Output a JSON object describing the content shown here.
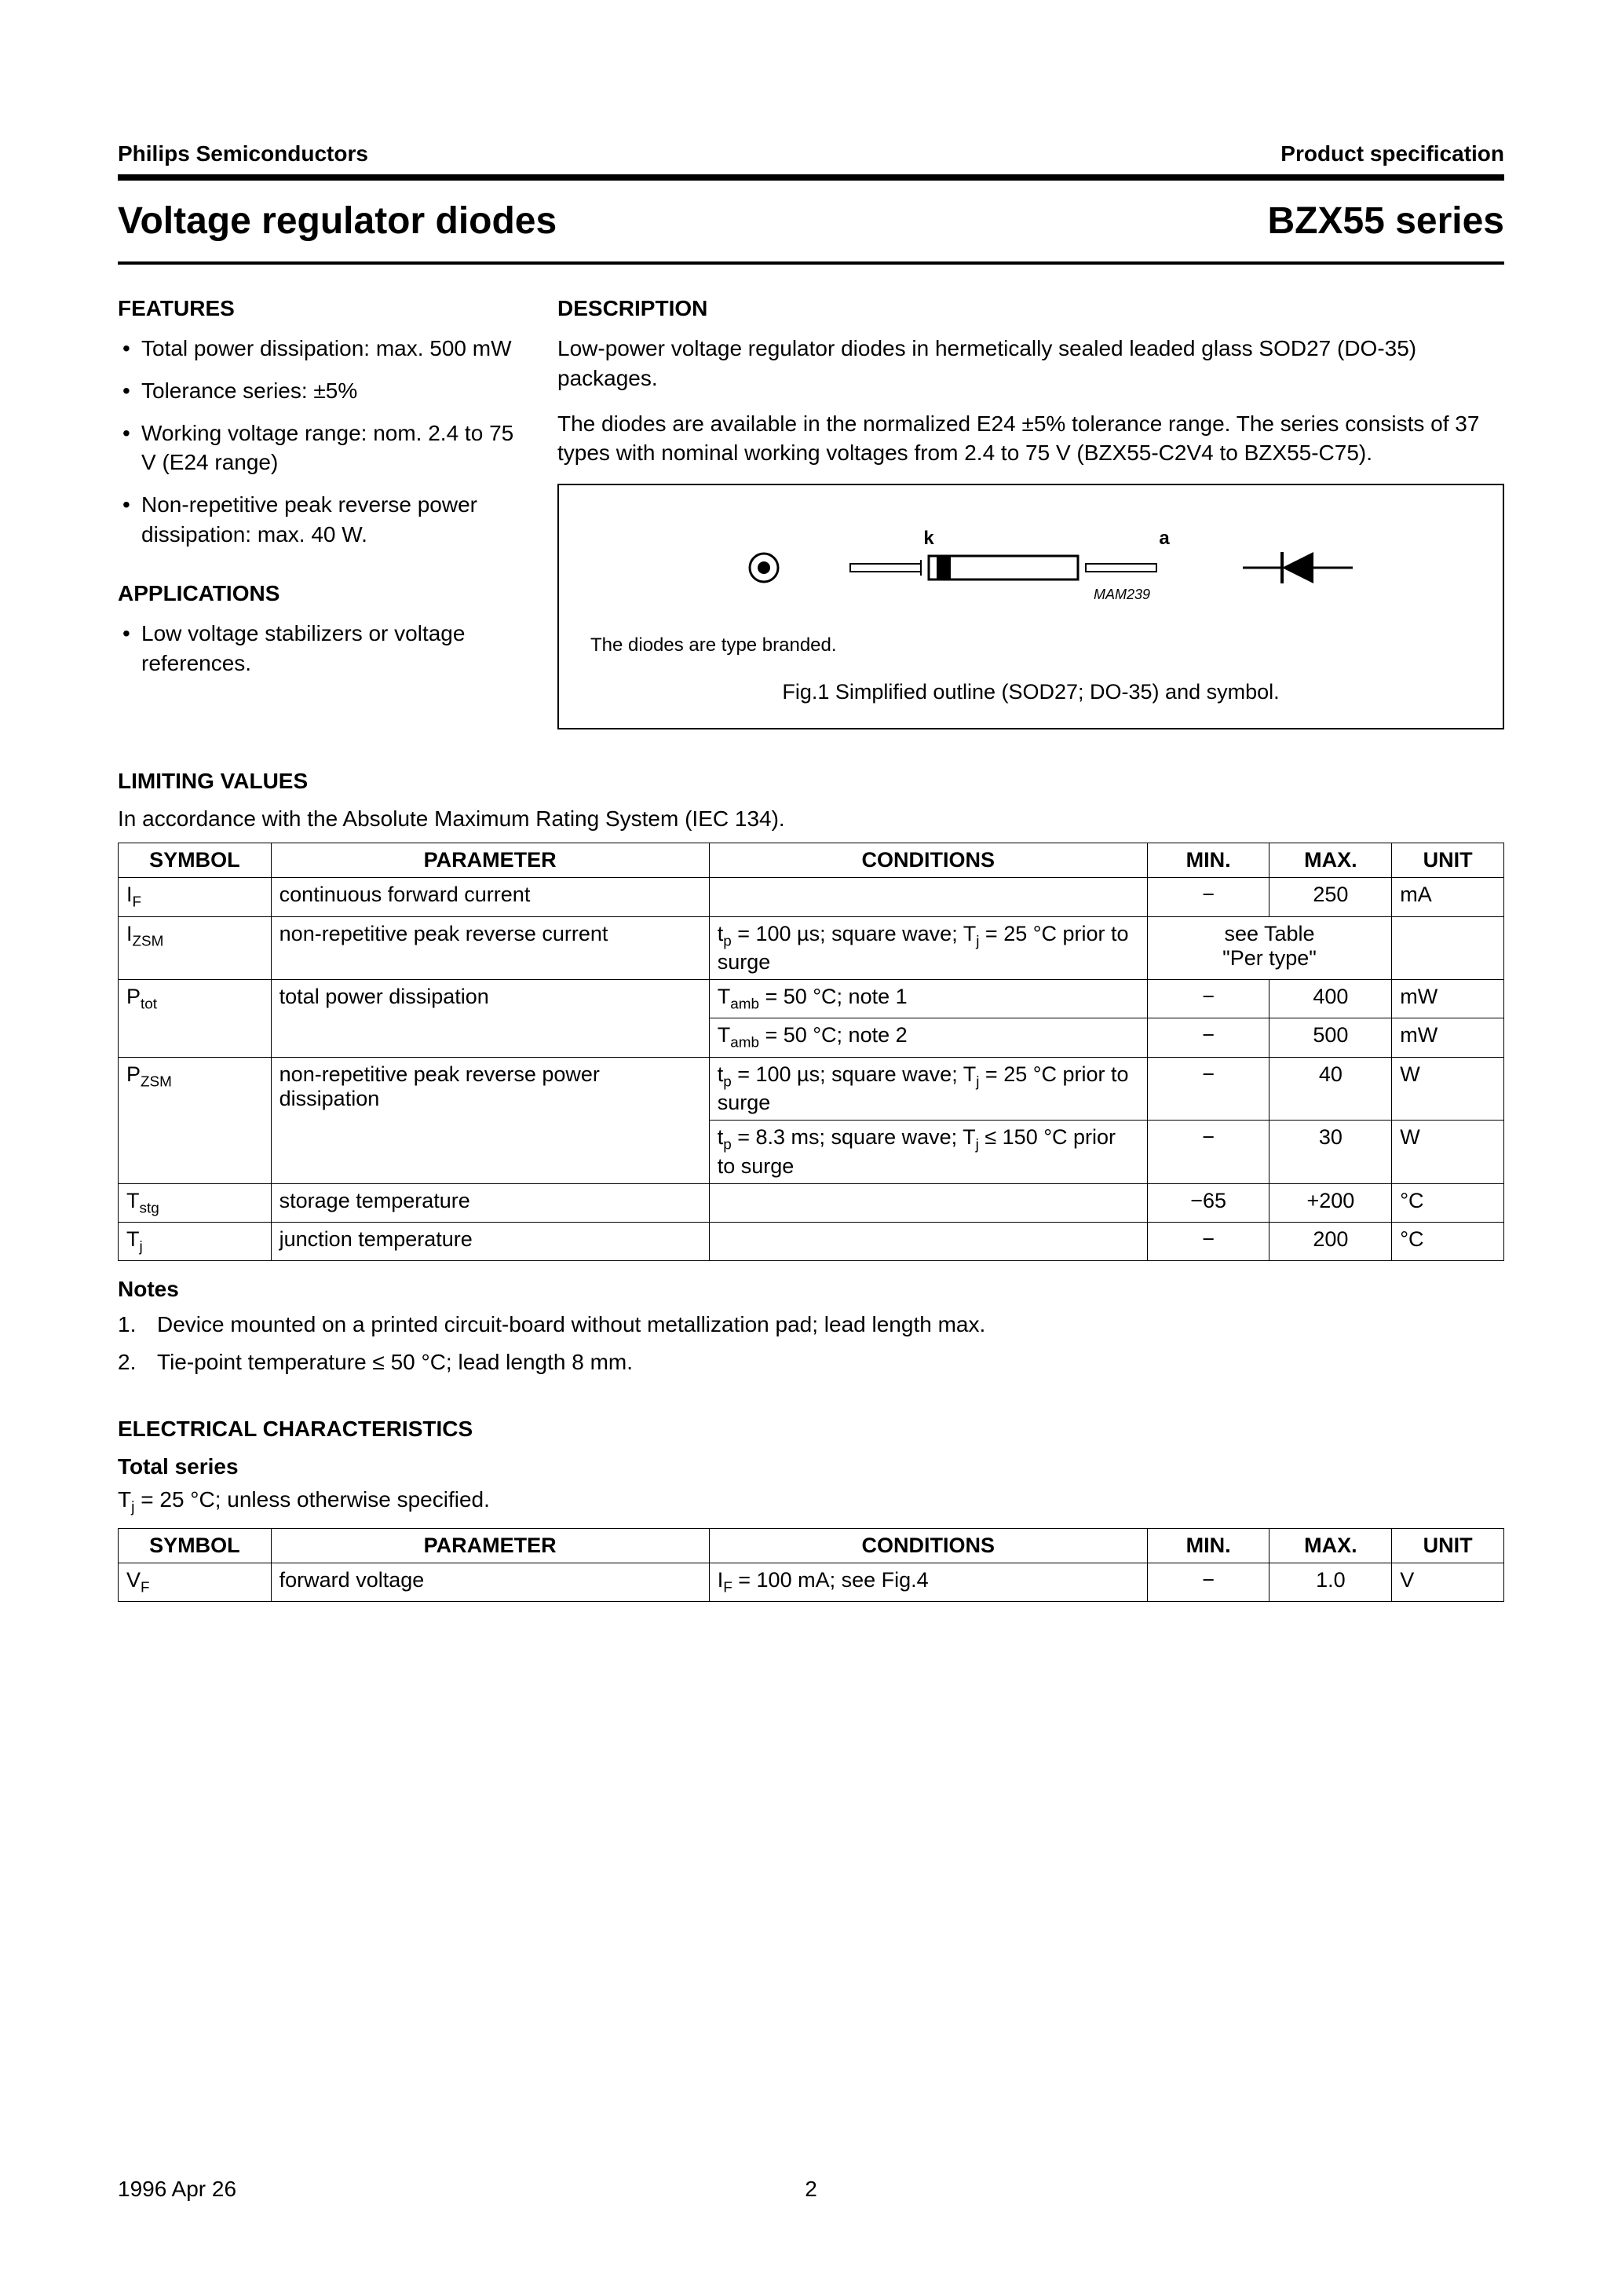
{
  "header": {
    "left": "Philips Semiconductors",
    "right": "Product specification"
  },
  "title": {
    "left": "Voltage regulator diodes",
    "right": "BZX55 series"
  },
  "features": {
    "heading": "FEATURES",
    "items": [
      "Total power dissipation: max. 500 mW",
      "Tolerance series: ±5%",
      "Working voltage range: nom. 2.4 to 75 V (E24 range)",
      "Non-repetitive peak reverse power dissipation: max. 40 W."
    ]
  },
  "applications": {
    "heading": "APPLICATIONS",
    "items": [
      "Low voltage stabilizers or voltage references."
    ]
  },
  "description": {
    "heading": "DESCRIPTION",
    "paragraphs": [
      "Low-power voltage regulator diodes in hermetically sealed leaded glass SOD27 (DO-35) packages.",
      "The diodes are available in the normalized E24 ±5% tolerance range. The series consists of 37 types with nominal working voltages from 2.4 to 75 V (BZX55-C2V4 to BZX55-C75)."
    ]
  },
  "figure": {
    "k_label": "k",
    "a_label": "a",
    "mam_label": "MAM239",
    "note": "The diodes are type branded.",
    "caption": "Fig.1  Simplified outline (SOD27; DO-35) and symbol."
  },
  "limiting": {
    "heading": "LIMITING VALUES",
    "intro": "In accordance with the Absolute Maximum Rating System (IEC 134).",
    "columns": [
      "SYMBOL",
      "PARAMETER",
      "CONDITIONS",
      "MIN.",
      "MAX.",
      "UNIT"
    ],
    "rows": [
      {
        "symbol_html": "I<sub>F</sub>",
        "parameter": "continuous forward current",
        "conditions": "",
        "min": "−",
        "max": "250",
        "unit": "mA",
        "span2": false
      },
      {
        "symbol_html": "I<sub>ZSM</sub>",
        "parameter": "non-repetitive peak reverse current",
        "conditions_html": "t<sub>p</sub> = 100 µs; square wave; T<sub>j</sub> = 25 °C prior to surge",
        "minmax_merged_html": "see Table<br>\"Per type\"",
        "unit": "",
        "span2": true
      },
      {
        "symbol_html": "P<sub>tot</sub>",
        "parameter": "total power dissipation",
        "conditions_html": "T<sub>amb</sub> = 50 °C; note 1",
        "min": "−",
        "max": "400",
        "unit": "mW",
        "rowspan_sym": 2
      },
      {
        "symbol_html": "",
        "parameter": "",
        "conditions_html": "T<sub>amb</sub> = 50 °C; note 2",
        "min": "−",
        "max": "500",
        "unit": "mW",
        "continuation": true
      },
      {
        "symbol_html": "P<sub>ZSM</sub>",
        "parameter": "non-repetitive peak reverse power dissipation",
        "conditions_html": "t<sub>p</sub> = 100 µs; square wave; T<sub>j</sub> = 25 °C prior to surge",
        "min": "−",
        "max": "40",
        "unit": "W",
        "rowspan_sym": 2
      },
      {
        "symbol_html": "",
        "parameter": "",
        "conditions_html": "t<sub>p</sub> = 8.3 ms; square wave; T<sub>j</sub> ≤ 150 °C prior to surge",
        "min": "−",
        "max": "30",
        "unit": "W",
        "continuation": true
      },
      {
        "symbol_html": "T<sub>stg</sub>",
        "parameter": "storage temperature",
        "conditions": "",
        "min": "−65",
        "max": "+200",
        "unit": "°C"
      },
      {
        "symbol_html": "T<sub>j</sub>",
        "parameter": "junction temperature",
        "conditions": "",
        "min": "−",
        "max": "200",
        "unit": "°C"
      }
    ]
  },
  "notes": {
    "heading": "Notes",
    "items": [
      "Device mounted on a printed circuit-board without metallization pad; lead length max.",
      "Tie-point temperature ≤ 50 °C; lead length 8 mm."
    ]
  },
  "electrical": {
    "heading": "ELECTRICAL CHARACTERISTICS",
    "sub_heading": "Total series",
    "condition_line_html": "T<sub>j</sub> = 25 °C; unless otherwise specified.",
    "columns": [
      "SYMBOL",
      "PARAMETER",
      "CONDITIONS",
      "MIN.",
      "MAX.",
      "UNIT"
    ],
    "rows": [
      {
        "symbol_html": "V<sub>F</sub>",
        "parameter": "forward voltage",
        "conditions_html": "I<sub>F</sub> = 100 mA; see Fig.4",
        "min": "−",
        "max": "1.0",
        "unit": "V"
      }
    ]
  },
  "footer": {
    "date": "1996 Apr 26",
    "page": "2"
  }
}
